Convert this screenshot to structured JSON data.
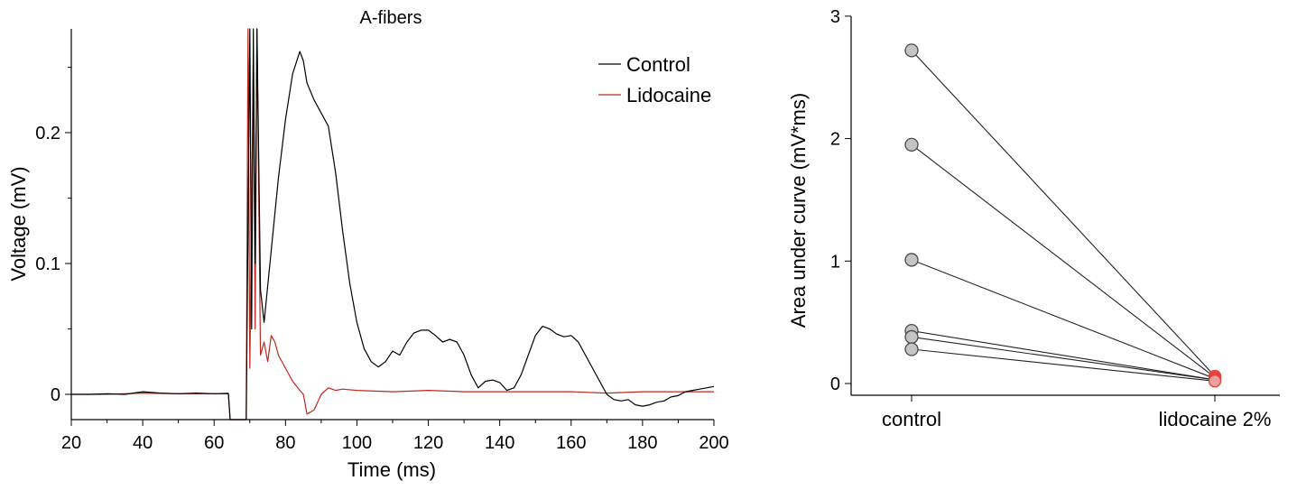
{
  "colors": {
    "control": "#000000",
    "lidocaine": "#c0281e",
    "marker_fill": "#c4c4c4",
    "marker_edge": "#4a4a4a",
    "marker_red": "#e8a0a0"
  },
  "chart_data": [
    {
      "type": "line",
      "title": "A-fibers",
      "xlabel": "Time (ms)",
      "ylabel": "Voltage (mV)",
      "xlim": [
        20,
        200
      ],
      "ylim": [
        -0.02,
        0.28
      ],
      "xticks": [
        20,
        40,
        60,
        80,
        100,
        120,
        140,
        160,
        180,
        200
      ],
      "xtick_labels": [
        "20",
        "40",
        "60",
        "80",
        "100",
        "120",
        "140",
        "160",
        "180",
        "200"
      ],
      "yticks": [
        0,
        0.1,
        0.2
      ],
      "ytick_labels": [
        "0",
        "0.1",
        "0.2"
      ],
      "grid": false,
      "legend": "top-right",
      "series": [
        {
          "name": "Control",
          "color": "#000000",
          "x": [
            20,
            25,
            30,
            35,
            40,
            45,
            50,
            55,
            60,
            64,
            64.5,
            69,
            70,
            70.5,
            71,
            71.5,
            72,
            73,
            74,
            76,
            78,
            80,
            82,
            84,
            85,
            86,
            88,
            90,
            92,
            94,
            96,
            98,
            100,
            102,
            104,
            106,
            108,
            110,
            112,
            114,
            116,
            118,
            120,
            122,
            124,
            126,
            128,
            130,
            132,
            134,
            136,
            138,
            140,
            142,
            144,
            146,
            148,
            150,
            152,
            154,
            156,
            158,
            160,
            162,
            164,
            166,
            168,
            170,
            172,
            174,
            176,
            178,
            180,
            182,
            184,
            186,
            188,
            190,
            192,
            194,
            196,
            198,
            200
          ],
          "y": [
            0,
            0,
            0.0005,
            0,
            0.002,
            0.001,
            0.0005,
            0.001,
            0.0005,
            0.0005,
            -0.02,
            -0.02,
            0.28,
            0.05,
            0.28,
            0.1,
            0.3,
            0.08,
            0.055,
            0.11,
            0.165,
            0.21,
            0.245,
            0.262,
            0.255,
            0.238,
            0.225,
            0.215,
            0.205,
            0.17,
            0.125,
            0.085,
            0.055,
            0.035,
            0.025,
            0.021,
            0.025,
            0.033,
            0.03,
            0.04,
            0.047,
            0.049,
            0.049,
            0.045,
            0.04,
            0.042,
            0.04,
            0.03,
            0.015,
            0.005,
            0.01,
            0.011,
            0.009,
            0.003,
            0.005,
            0.015,
            0.03,
            0.045,
            0.052,
            0.05,
            0.046,
            0.044,
            0.045,
            0.04,
            0.03,
            0.02,
            0.01,
            0,
            -0.004,
            -0.005,
            -0.004,
            -0.008,
            -0.009,
            -0.008,
            -0.006,
            -0.005,
            -0.002,
            -0.001,
            0.002,
            0.003,
            0.004,
            0.005,
            0.006
          ]
        },
        {
          "name": "Lidocaine",
          "color": "#c0281e",
          "x": [
            20,
            30,
            40,
            50,
            60,
            64,
            64.5,
            69,
            69.5,
            70,
            71,
            71.5,
            72,
            73,
            74,
            75,
            76,
            77,
            78,
            80,
            82,
            84,
            85,
            86,
            88,
            90,
            92,
            94,
            96,
            100,
            110,
            120,
            130,
            140,
            150,
            160,
            170,
            180,
            190,
            200
          ],
          "y": [
            0,
            0,
            0.001,
            0.0005,
            0.0005,
            0.001,
            -0.02,
            -0.02,
            0.29,
            0.02,
            0.26,
            0.05,
            0.3,
            0.03,
            0.04,
            0.025,
            0.045,
            0.04,
            0.03,
            0.02,
            0.01,
            0.003,
            0.0,
            -0.015,
            -0.012,
            0.0,
            0.005,
            0.003,
            0.004,
            0.003,
            0.002,
            0.003,
            0.002,
            0.002,
            0.002,
            0.002,
            0.001,
            0.002,
            0.002,
            0.002
          ]
        }
      ]
    },
    {
      "type": "scatter",
      "xlabel": "",
      "ylabel": "Area under curve (mV*ms)",
      "categories": [
        "control",
        "lidocaine 2%"
      ],
      "ylim": [
        -0.1,
        3
      ],
      "yticks": [
        0,
        1,
        2,
        3
      ],
      "ytick_labels": [
        "0",
        "1",
        "2",
        "3"
      ],
      "grid": false,
      "pairs": [
        [
          2.72,
          0.06
        ],
        [
          1.95,
          0.05
        ],
        [
          1.01,
          0.04
        ],
        [
          0.43,
          0.03
        ],
        [
          0.38,
          0.03
        ],
        [
          0.28,
          0.02
        ]
      ]
    }
  ]
}
